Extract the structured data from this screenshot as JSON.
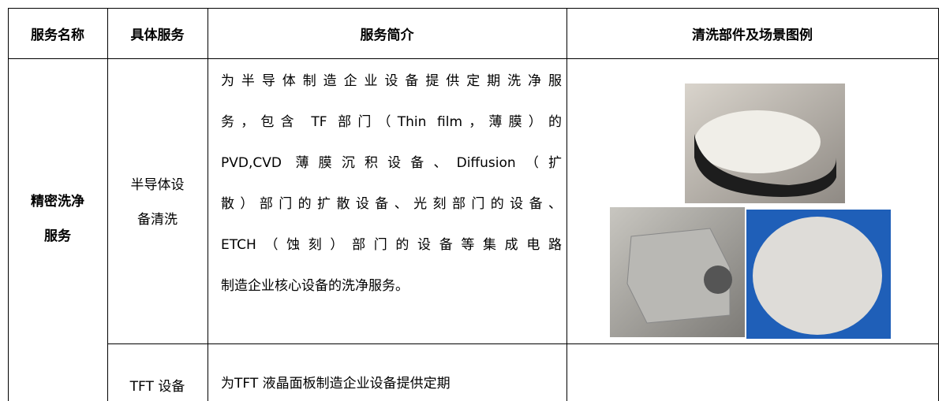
{
  "table": {
    "header": [
      "服务名称",
      "具体服务",
      "服务简介",
      "清洗部件及场景图例"
    ],
    "rows": [
      {
        "name": [
          "精密洗净",
          "服务"
        ],
        "service": [
          "半导体设",
          "备清洗"
        ],
        "intro": [
          "为半导体制造企业设备提供定期洗净服",
          "务，包含 TF 部门（Thin film，薄膜）的",
          "PVD,CVD 薄膜沉积设备、Diffusion（扩",
          "散）部门的扩散设备、光刻部门的设备、",
          "ETCH（蚀刻）部门的设备等集成电路",
          "制造企业核心设备的洗净服务。"
        ]
      },
      {
        "service": [
          "TFT 设备"
        ],
        "intro": [
          "为TFT 液晶面板制造企业设备提供定期"
        ]
      }
    ]
  }
}
